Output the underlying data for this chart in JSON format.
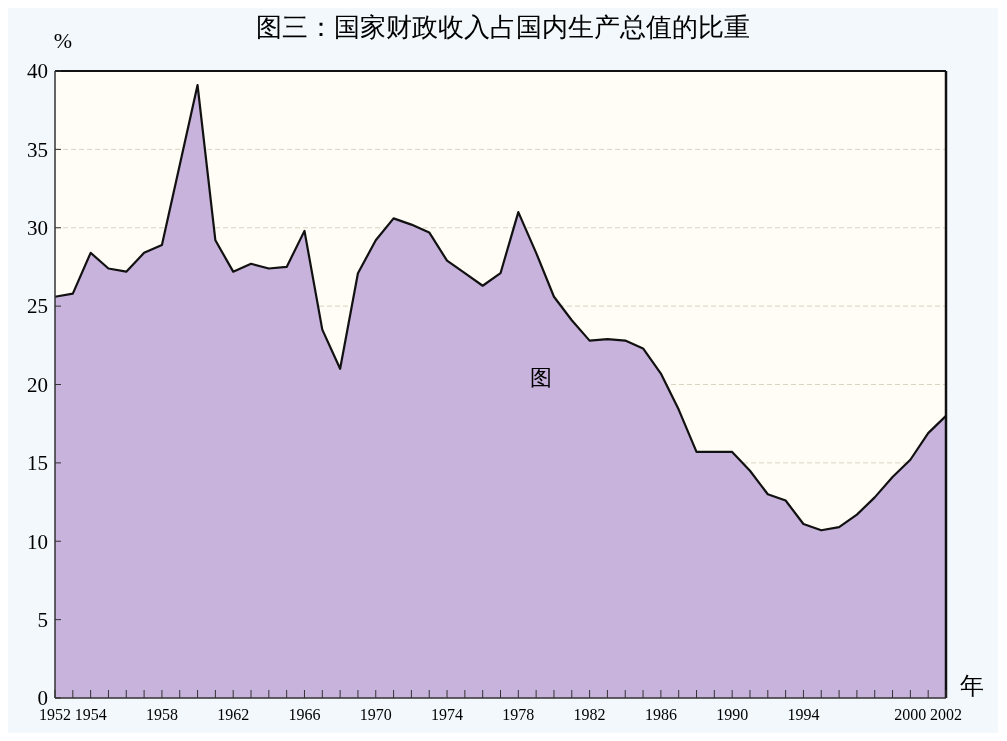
{
  "chart_data": {
    "type": "area",
    "title": "图三：国家财政收入占国内生产总值的比重",
    "xlabel": "年",
    "ylabel": "%",
    "annotations": [
      "图"
    ],
    "x": [
      1952,
      1953,
      1954,
      1955,
      1956,
      1957,
      1958,
      1959,
      1960,
      1961,
      1962,
      1963,
      1964,
      1965,
      1966,
      1967,
      1968,
      1969,
      1970,
      1971,
      1972,
      1973,
      1974,
      1975,
      1976,
      1977,
      1978,
      1979,
      1980,
      1981,
      1982,
      1983,
      1984,
      1985,
      1986,
      1987,
      1988,
      1989,
      1990,
      1991,
      1992,
      1993,
      1994,
      1995,
      1996,
      1997,
      1998,
      1999,
      2000,
      2001,
      2002
    ],
    "series": [
      {
        "color": "#c7b3dc",
        "values": [
          25.6,
          25.8,
          28.4,
          27.4,
          27.2,
          28.4,
          28.9,
          34.0,
          39.1,
          29.2,
          27.2,
          27.7,
          27.4,
          27.5,
          29.8,
          23.5,
          21.0,
          27.1,
          29.2,
          30.6,
          30.2,
          29.7,
          27.9,
          27.1,
          26.3,
          27.1,
          31.0,
          28.4,
          25.6,
          24.1,
          22.8,
          22.9,
          22.8,
          22.3,
          20.7,
          18.4,
          15.7,
          15.7,
          15.7,
          14.5,
          13.0,
          12.6,
          11.1,
          10.7,
          10.9,
          11.7,
          12.8,
          14.1,
          15.2,
          16.9,
          18.0
        ]
      }
    ],
    "xlim": [
      1952,
      2002
    ],
    "xticks": [
      1952,
      {
        "value": 1953,
        "label": null
      },
      1954,
      {
        "value": 1955,
        "label": null
      },
      {
        "value": 1956,
        "label": null
      },
      {
        "value": 1957,
        "label": null
      },
      1958,
      {
        "value": 1959,
        "label": null
      },
      {
        "value": 1960,
        "label": null
      },
      {
        "value": 1961,
        "label": null
      },
      1962,
      {
        "value": 1963,
        "label": null
      },
      {
        "value": 1964,
        "label": null
      },
      {
        "value": 1965,
        "label": null
      },
      1966,
      {
        "value": 1967,
        "label": null
      },
      {
        "value": 1968,
        "label": null
      },
      {
        "value": 1969,
        "label": null
      },
      1970,
      {
        "value": 1971,
        "label": null
      },
      {
        "value": 1972,
        "label": null
      },
      {
        "value": 1973,
        "label": null
      },
      1974,
      {
        "value": 1975,
        "label": null
      },
      {
        "value": 1976,
        "label": null
      },
      {
        "value": 1977,
        "label": null
      },
      1978,
      {
        "value": 1979,
        "label": null
      },
      {
        "value": 1980,
        "label": null
      },
      {
        "value": 1981,
        "label": null
      },
      1982,
      {
        "value": 1983,
        "label": null
      },
      {
        "value": 1984,
        "label": null
      },
      {
        "value": 1985,
        "label": null
      },
      1986,
      {
        "value": 1987,
        "label": null
      },
      {
        "value": 1988,
        "label": null
      },
      {
        "value": 1989,
        "label": null
      },
      1990,
      {
        "value": 1991,
        "label": null
      },
      {
        "value": 1992,
        "label": null
      },
      {
        "value": 1993,
        "label": null
      },
      1994,
      {
        "value": 1995,
        "label": null
      },
      {
        "value": 1996,
        "label": null
      },
      {
        "value": 1997,
        "label": null
      },
      {
        "value": 1998,
        "label": null
      },
      {
        "value": 1999,
        "label": null
      },
      2000,
      {
        "value": 2001,
        "label": null
      },
      2002
    ],
    "ylim": [
      0,
      40
    ],
    "yticks": [
      0,
      5,
      10,
      15,
      20,
      25,
      30,
      35,
      40
    ],
    "grid": "y"
  }
}
